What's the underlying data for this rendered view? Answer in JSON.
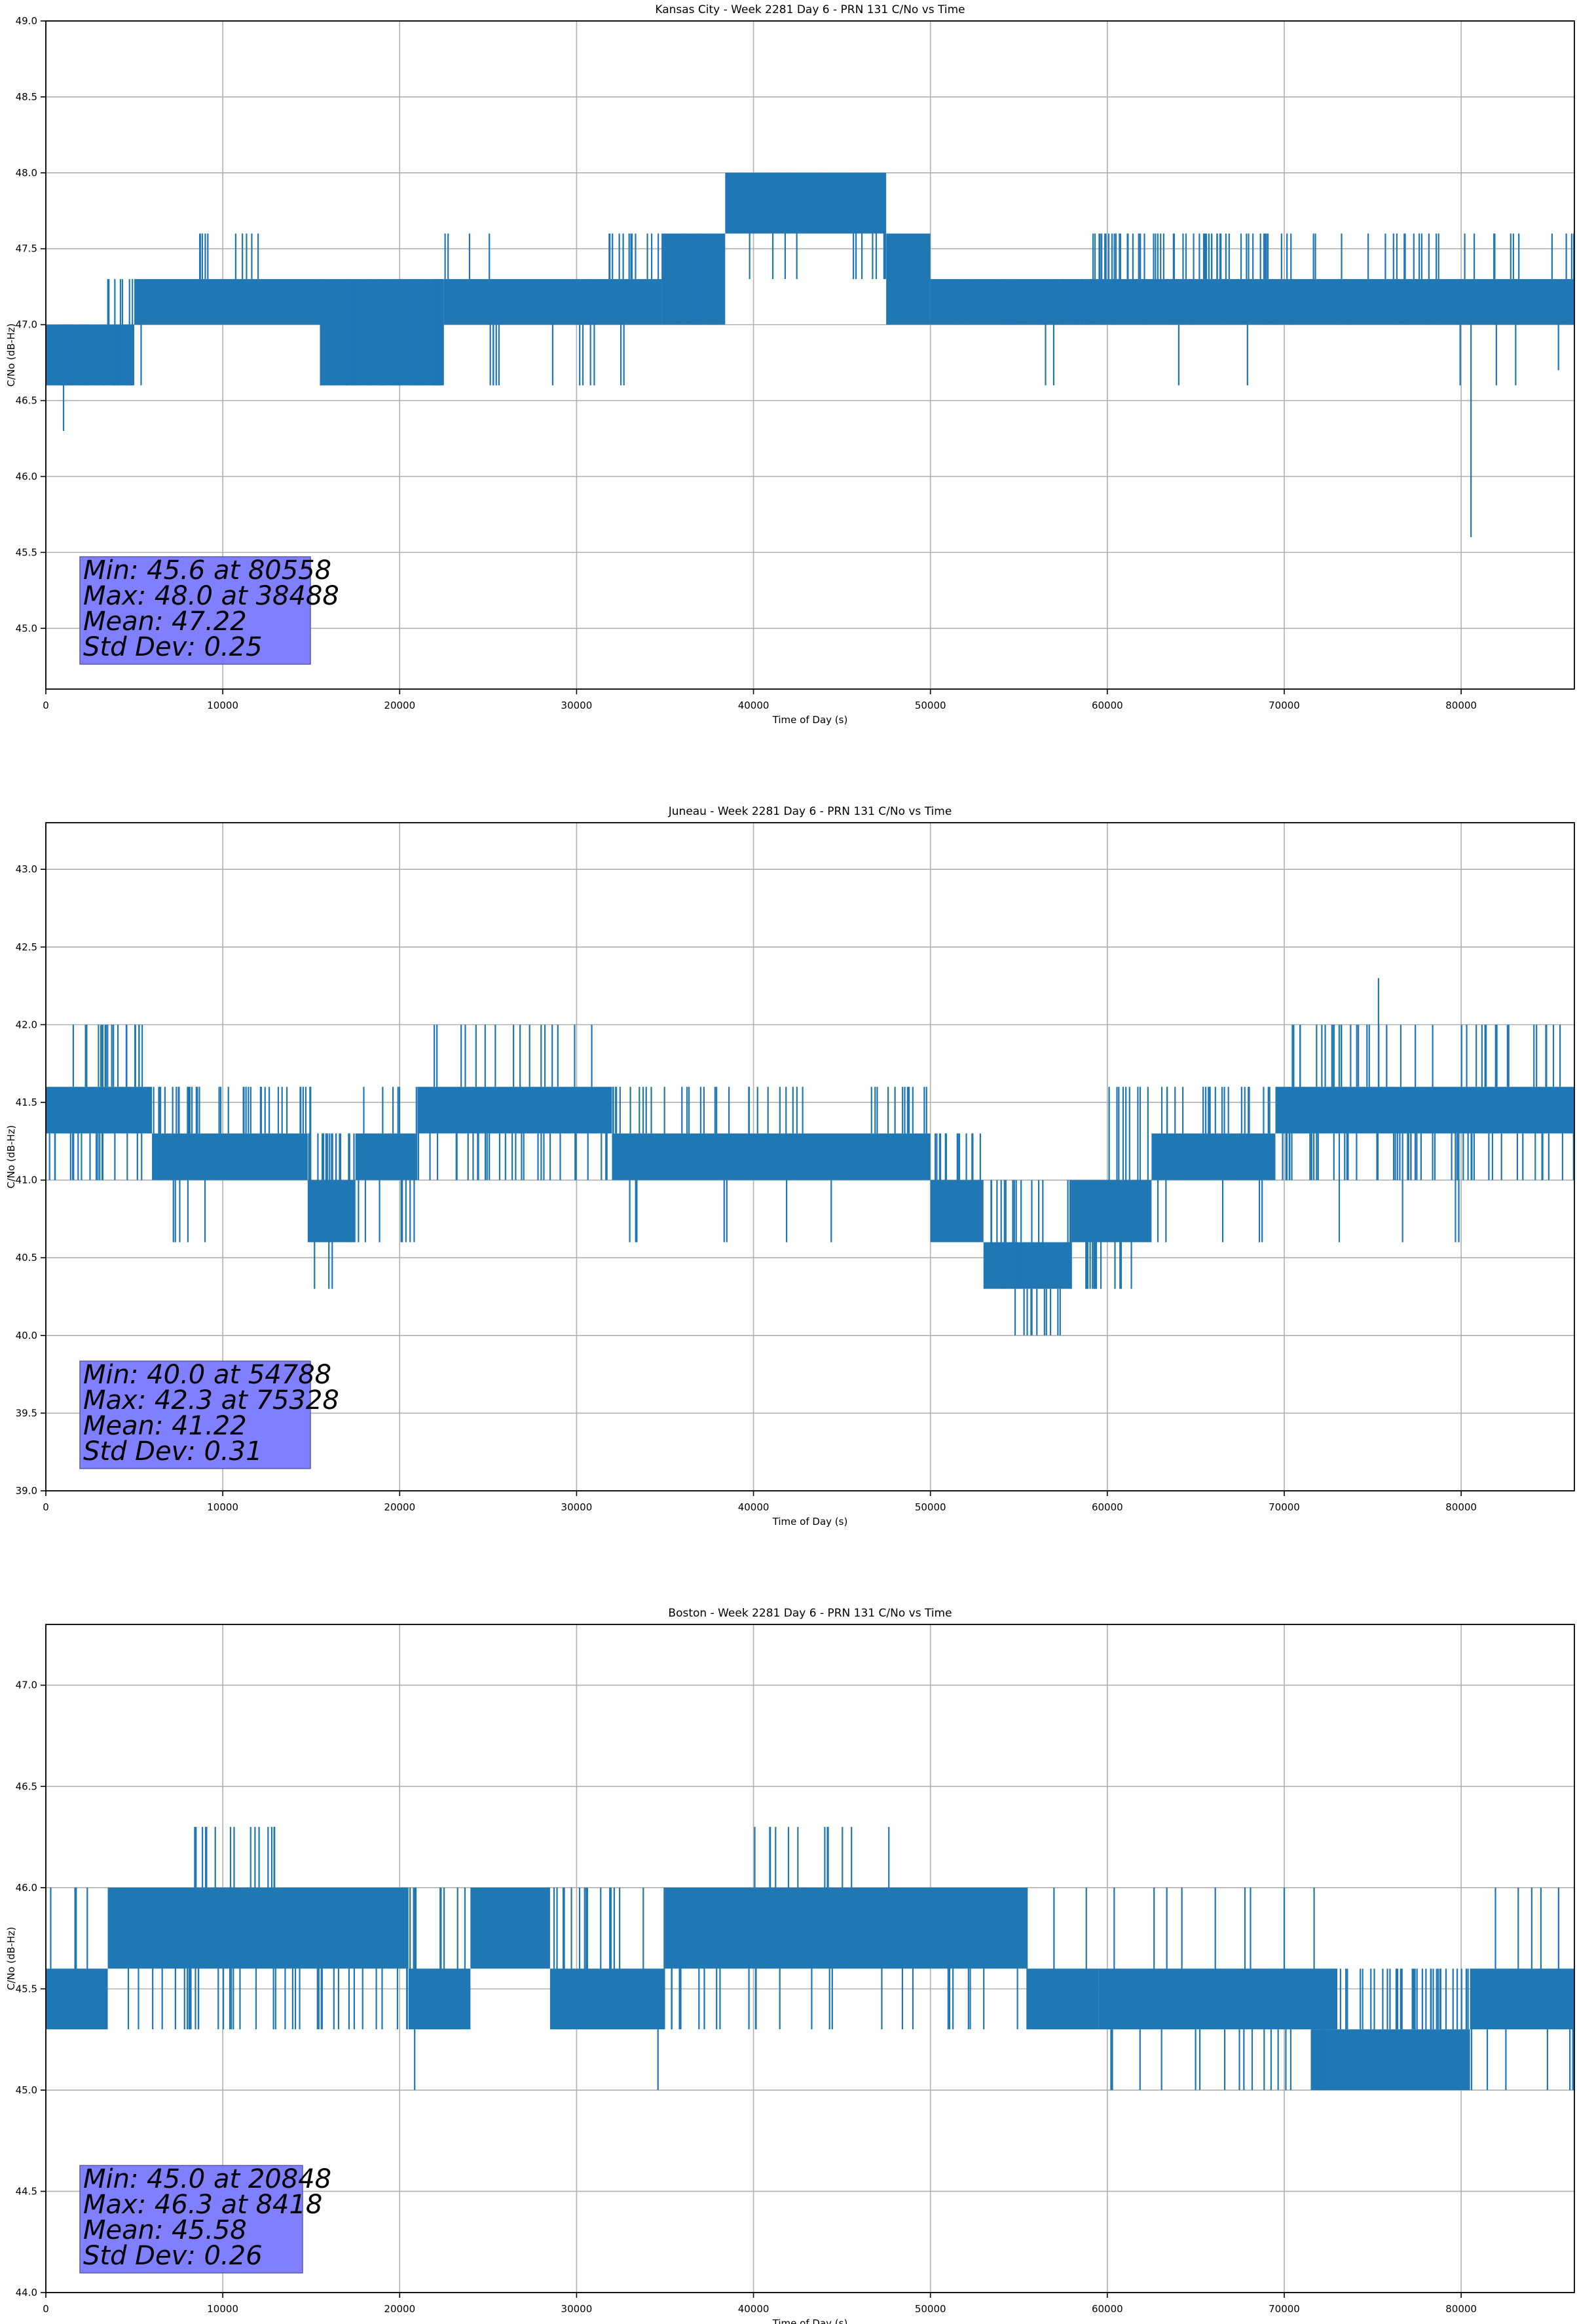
{
  "chart_data": [
    {
      "type": "line",
      "title": "Kansas City - Week 2281 Day 6 - PRN 131 C/No vs Time",
      "xlabel": "Time of Day (s)",
      "ylabel": "C/No (dB-Hz)",
      "xlim": [
        0,
        86400
      ],
      "ylim": [
        44.6,
        49.0
      ],
      "xticks": [
        0,
        10000,
        20000,
        30000,
        40000,
        50000,
        60000,
        70000,
        80000
      ],
      "yticks": [
        45.0,
        45.5,
        46.0,
        46.5,
        47.0,
        47.5,
        48.0,
        48.5,
        49.0
      ],
      "ytick_decimals": 1,
      "grid": true,
      "line_color": "#1f77b4",
      "quantization": [
        46.6,
        47.0,
        47.3,
        47.6,
        48.0
      ],
      "band_segments": [
        {
          "x": [
            0,
            5000
          ],
          "low": 46.6,
          "high": 47.0
        },
        {
          "x": [
            5000,
            15500
          ],
          "low": 47.0,
          "high": 47.3
        },
        {
          "x": [
            15500,
            22500
          ],
          "low": 46.6,
          "high": 47.3
        },
        {
          "x": [
            22500,
            34800
          ],
          "low": 47.0,
          "high": 47.3
        },
        {
          "x": [
            34800,
            38400
          ],
          "low": 47.0,
          "high": 47.6
        },
        {
          "x": [
            38400,
            47500
          ],
          "low": 47.6,
          "high": 48.0
        },
        {
          "x": [
            47500,
            50000
          ],
          "low": 47.0,
          "high": 47.6
        },
        {
          "x": [
            50000,
            86400
          ],
          "low": 47.0,
          "high": 47.3
        }
      ],
      "spike_regions": [
        {
          "x": [
            600,
            5400
          ],
          "to": [
            46.6,
            47.0
          ],
          "count": 30
        },
        {
          "x": [
            3500,
            5500
          ],
          "to": [
            46.6,
            47.3
          ],
          "count": 14
        },
        {
          "x": [
            8500,
            12000
          ],
          "to": [
            47.6
          ],
          "count": 10
        },
        {
          "x": [
            15500,
            22500
          ],
          "to": [
            46.6
          ],
          "count": 70
        },
        {
          "x": [
            22000,
            29500
          ],
          "to": [
            46.6,
            47.6
          ],
          "count": 10
        },
        {
          "x": [
            30000,
            38500
          ],
          "to": [
            47.6
          ],
          "count": 26
        },
        {
          "x": [
            30000,
            35000
          ],
          "to": [
            47.0,
            46.6
          ],
          "count": 14
        },
        {
          "x": [
            38400,
            47500
          ],
          "to": [
            47.3,
            47.6
          ],
          "count": 24
        },
        {
          "x": [
            50000,
            60000
          ],
          "to": [
            47.0
          ],
          "count": 26
        },
        {
          "x": [
            59000,
            69000
          ],
          "to": [
            47.6
          ],
          "count": 56
        },
        {
          "x": [
            69000,
            86400
          ],
          "to": [
            47.6
          ],
          "count": 30
        },
        {
          "x": [
            53000,
            86400
          ],
          "to": [
            47.0
          ],
          "count": 55
        },
        {
          "x": [
            56000,
            86400
          ],
          "to": [
            46.6
          ],
          "count": 7
        }
      ],
      "extreme_spikes": [
        {
          "x": 1000,
          "y": 46.3
        },
        {
          "x": 80558,
          "y": 45.6
        },
        {
          "x": 38488,
          "y": 48.0
        },
        {
          "x": 85500,
          "y": 46.7
        }
      ],
      "stats": {
        "min": "Min: 45.6 at 80558",
        "max": "Max: 48.0 at 38488",
        "mean": "Mean: 47.22",
        "std": "Std Dev: 0.25"
      }
    },
    {
      "type": "line",
      "title": "Juneau - Week 2281 Day 6 - PRN 131 C/No vs Time",
      "xlabel": "Time of Day (s)",
      "ylabel": "C/No (dB-Hz)",
      "xlim": [
        0,
        86400
      ],
      "ylim": [
        39.0,
        43.3
      ],
      "xticks": [
        0,
        10000,
        20000,
        30000,
        40000,
        50000,
        60000,
        70000,
        80000
      ],
      "yticks": [
        39.0,
        39.5,
        40.0,
        40.5,
        41.0,
        41.5,
        42.0,
        42.5,
        43.0
      ],
      "ytick_decimals": 1,
      "grid": true,
      "line_color": "#1f77b4",
      "quantization": [
        40.0,
        40.3,
        40.6,
        41.0,
        41.3,
        41.6,
        42.0
      ],
      "band_segments": [
        {
          "x": [
            0,
            6000
          ],
          "low": 41.3,
          "high": 41.6
        },
        {
          "x": [
            6000,
            14800
          ],
          "low": 41.0,
          "high": 41.3
        },
        {
          "x": [
            14800,
            17500
          ],
          "low": 40.6,
          "high": 41.0
        },
        {
          "x": [
            17500,
            21000
          ],
          "low": 41.0,
          "high": 41.3
        },
        {
          "x": [
            21000,
            32000
          ],
          "low": 41.3,
          "high": 41.6
        },
        {
          "x": [
            32000,
            50000
          ],
          "low": 41.0,
          "high": 41.3
        },
        {
          "x": [
            50000,
            53000
          ],
          "low": 40.6,
          "high": 41.0
        },
        {
          "x": [
            53000,
            58000
          ],
          "low": 40.3,
          "high": 40.6
        },
        {
          "x": [
            58000,
            62500
          ],
          "low": 40.6,
          "high": 41.0
        },
        {
          "x": [
            62500,
            69500
          ],
          "low": 41.0,
          "high": 41.3
        },
        {
          "x": [
            69500,
            86400
          ],
          "low": 41.3,
          "high": 41.6
        }
      ],
      "spike_regions": [
        {
          "x": [
            0,
            5500
          ],
          "to": [
            41.0
          ],
          "count": 18
        },
        {
          "x": [
            1500,
            6000
          ],
          "to": [
            42.0
          ],
          "count": 20
        },
        {
          "x": [
            6000,
            15000
          ],
          "to": [
            41.6
          ],
          "count": 40
        },
        {
          "x": [
            6500,
            9000
          ],
          "to": [
            40.6
          ],
          "count": 5
        },
        {
          "x": [
            14800,
            17500
          ],
          "to": [
            41.3
          ],
          "count": 20
        },
        {
          "x": [
            15000,
            17000
          ],
          "to": [
            40.3
          ],
          "count": 2
        },
        {
          "x": [
            17500,
            21000
          ],
          "to": [
            41.6,
            40.6
          ],
          "count": 14
        },
        {
          "x": [
            21000,
            31500
          ],
          "to": [
            42.0
          ],
          "count": 16
        },
        {
          "x": [
            21000,
            32000
          ],
          "to": [
            41.0
          ],
          "count": 30
        },
        {
          "x": [
            32000,
            50000
          ],
          "to": [
            41.6
          ],
          "count": 40
        },
        {
          "x": [
            32000,
            47000
          ],
          "to": [
            40.6
          ],
          "count": 7
        },
        {
          "x": [
            50000,
            53000
          ],
          "to": [
            41.3
          ],
          "count": 14
        },
        {
          "x": [
            53000,
            58000
          ],
          "to": [
            40.6,
            41.0
          ],
          "count": 30
        },
        {
          "x": [
            54000,
            58000
          ],
          "to": [
            40.0
          ],
          "count": 10
        },
        {
          "x": [
            58000,
            62000
          ],
          "to": [
            40.3
          ],
          "count": 14
        },
        {
          "x": [
            60000,
            69500
          ],
          "to": [
            41.6
          ],
          "count": 30
        },
        {
          "x": [
            62500,
            69000
          ],
          "to": [
            40.6
          ],
          "count": 5
        },
        {
          "x": [
            69500,
            86400
          ],
          "to": [
            41.0
          ],
          "count": 55
        },
        {
          "x": [
            69500,
            86400
          ],
          "to": [
            42.0
          ],
          "count": 40
        },
        {
          "x": [
            72000,
            81000
          ],
          "to": [
            40.6
          ],
          "count": 4
        }
      ],
      "extreme_spikes": [
        {
          "x": 54788,
          "y": 40.0
        },
        {
          "x": 75328,
          "y": 42.3
        },
        {
          "x": 16000,
          "y": 40.3
        }
      ],
      "stats": {
        "min": "Min: 40.0 at 54788",
        "max": "Max: 42.3 at 75328",
        "mean": "Mean: 41.22",
        "std": "Std Dev: 0.31"
      }
    },
    {
      "type": "line",
      "title": "Boston - Week 2281 Day 6 - PRN 131 C/No vs Time",
      "xlabel": "Time of Day (s)",
      "ylabel": "C/No (dB-Hz)",
      "xlim": [
        0,
        86400
      ],
      "ylim": [
        44.0,
        47.3
      ],
      "xticks": [
        0,
        10000,
        20000,
        30000,
        40000,
        50000,
        60000,
        70000,
        80000
      ],
      "yticks": [
        44.0,
        44.5,
        45.0,
        45.5,
        46.0,
        46.5,
        47.0
      ],
      "ytick_decimals": 1,
      "grid": true,
      "line_color": "#1f77b4",
      "quantization": [
        45.0,
        45.3,
        45.6,
        46.0,
        46.3
      ],
      "band_segments": [
        {
          "x": [
            0,
            3500
          ],
          "low": 45.3,
          "high": 45.6
        },
        {
          "x": [
            3500,
            20500
          ],
          "low": 45.6,
          "high": 46.0
        },
        {
          "x": [
            20500,
            24000
          ],
          "low": 45.3,
          "high": 45.6
        },
        {
          "x": [
            24000,
            28500
          ],
          "low": 45.6,
          "high": 46.0
        },
        {
          "x": [
            28500,
            35000
          ],
          "low": 45.3,
          "high": 45.6
        },
        {
          "x": [
            35000,
            55500
          ],
          "low": 45.6,
          "high": 46.0
        },
        {
          "x": [
            55500,
            59500
          ],
          "low": 45.3,
          "high": 45.6
        },
        {
          "x": [
            59500,
            73000
          ],
          "low": 45.3,
          "high": 45.6
        },
        {
          "x": [
            71500,
            80500
          ],
          "low": 45.0,
          "high": 45.3
        },
        {
          "x": [
            80500,
            86400
          ],
          "low": 45.3,
          "high": 45.6
        }
      ],
      "spike_regions": [
        {
          "x": [
            0,
            3500
          ],
          "to": [
            46.0
          ],
          "count": 4
        },
        {
          "x": [
            3500,
            20500
          ],
          "to": [
            45.3
          ],
          "count": 40
        },
        {
          "x": [
            8000,
            13000
          ],
          "to": [
            46.3
          ],
          "count": 14
        },
        {
          "x": [
            20500,
            24000
          ],
          "to": [
            46.0
          ],
          "count": 10
        },
        {
          "x": [
            28500,
            35000
          ],
          "to": [
            46.0
          ],
          "count": 16
        },
        {
          "x": [
            35000,
            55500
          ],
          "to": [
            45.3
          ],
          "count": 26
        },
        {
          "x": [
            39500,
            50000
          ],
          "to": [
            46.3
          ],
          "count": 12
        },
        {
          "x": [
            55500,
            73000
          ],
          "to": [
            46.0
          ],
          "count": 12
        },
        {
          "x": [
            59500,
            73000
          ],
          "to": [
            45.0
          ],
          "count": 18
        },
        {
          "x": [
            71500,
            80500
          ],
          "to": [
            45.6
          ],
          "count": 40
        },
        {
          "x": [
            80500,
            86400
          ],
          "to": [
            45.0,
            46.0
          ],
          "count": 12
        }
      ],
      "extreme_spikes": [
        {
          "x": 20848,
          "y": 45.0
        },
        {
          "x": 8418,
          "y": 46.3
        },
        {
          "x": 34600,
          "y": 45.0
        }
      ],
      "stats": {
        "min": "Min: 45.0 at 20848",
        "max": "Max: 46.3 at 8418",
        "mean": "Mean: 45.58",
        "std": "Std Dev: 0.26"
      }
    }
  ]
}
